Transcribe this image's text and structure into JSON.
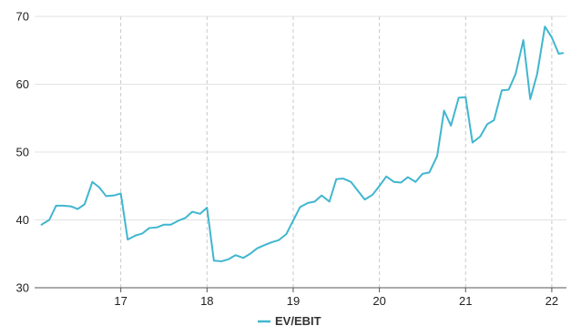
{
  "chart_data": {
    "type": "line",
    "title": "",
    "xlabel": "",
    "ylabel": "",
    "xlim": [
      16.0,
      22.17
    ],
    "ylim": [
      30,
      70
    ],
    "x_ticks": [
      17,
      18,
      19,
      20,
      21,
      22
    ],
    "y_ticks": [
      30,
      40,
      50,
      60,
      70
    ],
    "grid": {
      "horizontal": true,
      "vertical": true,
      "vertical_style": "dashed"
    },
    "legend": {
      "placement": "bottom-center"
    },
    "series": [
      {
        "name": "EV/EBIT",
        "color": "#41b6cf",
        "x": [
          16.08,
          16.17,
          16.25,
          16.33,
          16.42,
          16.5,
          16.58,
          16.67,
          16.75,
          16.83,
          16.92,
          17.0,
          17.08,
          17.17,
          17.25,
          17.33,
          17.42,
          17.5,
          17.58,
          17.67,
          17.75,
          17.83,
          17.92,
          18.0,
          18.08,
          18.17,
          18.25,
          18.33,
          18.42,
          18.5,
          18.58,
          18.67,
          18.75,
          18.83,
          18.92,
          19.0,
          19.08,
          19.17,
          19.25,
          19.33,
          19.42,
          19.5,
          19.58,
          19.67,
          19.75,
          19.83,
          19.92,
          20.0,
          20.08,
          20.17,
          20.25,
          20.33,
          20.42,
          20.5,
          20.58,
          20.67,
          20.75,
          20.83,
          20.92,
          21.0,
          21.08,
          21.17,
          21.25,
          21.33,
          21.42,
          21.5,
          21.58,
          21.67,
          21.75,
          21.83,
          21.92,
          22.0,
          22.08,
          22.13
        ],
        "values": [
          39.3,
          40.0,
          42.1,
          42.1,
          42.0,
          41.6,
          42.3,
          45.6,
          44.8,
          43.5,
          43.6,
          43.9,
          37.1,
          37.7,
          38.0,
          38.8,
          38.9,
          39.3,
          39.3,
          39.9,
          40.3,
          41.2,
          40.9,
          41.8,
          34.0,
          33.9,
          34.2,
          34.8,
          34.4,
          35.0,
          35.8,
          36.3,
          36.7,
          37.0,
          37.9,
          39.9,
          41.9,
          42.5,
          42.7,
          43.6,
          42.7,
          46.0,
          46.1,
          45.6,
          44.3,
          43.0,
          43.7,
          45.0,
          46.4,
          45.6,
          45.5,
          46.3,
          45.6,
          46.8,
          47.0,
          49.4,
          56.1,
          53.9,
          58.0,
          58.1,
          51.4,
          52.3,
          54.1,
          54.7,
          59.1,
          59.2,
          61.5,
          66.5,
          57.8,
          61.5,
          68.5,
          66.9,
          64.5,
          64.6
        ]
      }
    ]
  }
}
